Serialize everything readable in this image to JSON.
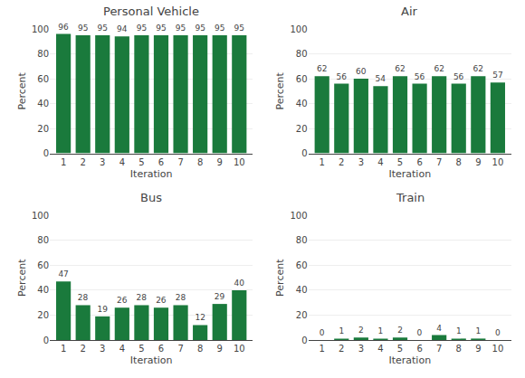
{
  "chart_data": [
    {
      "type": "bar",
      "title": "Personal Vehicle",
      "xlabel": "Iteration",
      "ylabel": "Percent",
      "x": [
        1,
        2,
        3,
        4,
        5,
        6,
        7,
        8,
        9,
        10
      ],
      "values": [
        96,
        95,
        95,
        94,
        95,
        95,
        95,
        95,
        95,
        95
      ],
      "color": "#1a7a3c",
      "xlim": [
        0.3,
        10.7
      ],
      "xticks": [
        1,
        2,
        3,
        4,
        5,
        6,
        7,
        8,
        9,
        10
      ],
      "ylim": [
        0,
        100
      ],
      "yticks": [
        0,
        20,
        40,
        60,
        80,
        100
      ],
      "grid": "y",
      "data_labels": true
    },
    {
      "type": "bar",
      "title": "Air",
      "xlabel": "Iteration",
      "ylabel": "Percent",
      "x": [
        1,
        2,
        3,
        4,
        5,
        6,
        7,
        8,
        9,
        10
      ],
      "values": [
        62,
        56,
        60,
        54,
        62,
        56,
        62,
        56,
        62,
        57
      ],
      "color": "#1a7a3c",
      "xlim": [
        0.3,
        10.7
      ],
      "xticks": [
        1,
        2,
        3,
        4,
        5,
        6,
        7,
        8,
        9,
        10
      ],
      "ylim": [
        0,
        100
      ],
      "yticks": [
        0,
        20,
        40,
        60,
        80,
        100
      ],
      "grid": "y",
      "data_labels": true
    },
    {
      "type": "bar",
      "title": "Bus",
      "xlabel": "Iteration",
      "ylabel": "Percent",
      "x": [
        1,
        2,
        3,
        4,
        5,
        6,
        7,
        8,
        9,
        10
      ],
      "values": [
        47,
        28,
        19,
        26,
        28,
        26,
        28,
        12,
        29,
        40
      ],
      "color": "#1a7a3c",
      "xlim": [
        0.3,
        10.7
      ],
      "xticks": [
        1,
        2,
        3,
        4,
        5,
        6,
        7,
        8,
        9,
        10
      ],
      "ylim": [
        0,
        100
      ],
      "yticks": [
        0,
        20,
        40,
        60,
        80,
        100
      ],
      "grid": "y",
      "data_labels": true
    },
    {
      "type": "bar",
      "title": "Train",
      "xlabel": "Iteration",
      "ylabel": "Percent",
      "x": [
        1,
        2,
        3,
        4,
        5,
        6,
        7,
        8,
        9,
        10
      ],
      "values": [
        0,
        1,
        2,
        1,
        2,
        0,
        4,
        1,
        1,
        0
      ],
      "color": "#1a7a3c",
      "xlim": [
        0.3,
        10.7
      ],
      "xticks": [
        1,
        2,
        3,
        4,
        5,
        6,
        7,
        8,
        9,
        10
      ],
      "ylim": [
        0,
        100
      ],
      "yticks": [
        0,
        20,
        40,
        60,
        80,
        100
      ],
      "grid": "y",
      "data_labels": true
    }
  ]
}
